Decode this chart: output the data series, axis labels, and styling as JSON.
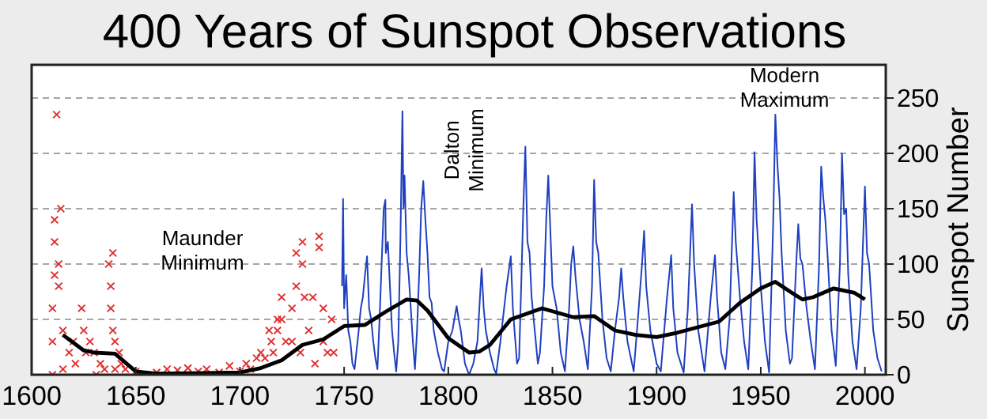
{
  "chart_data": {
    "type": "line",
    "title": "400 Years of Sunspot Observations",
    "ylabel": "Sunspot Number",
    "xlim": [
      1600,
      2010
    ],
    "xticks": [
      1600,
      1650,
      1700,
      1750,
      1800,
      1850,
      1900,
      1950,
      2000
    ],
    "ylim": [
      0,
      280
    ],
    "yticks": [
      0,
      50,
      100,
      150,
      200,
      250
    ],
    "grid": "y",
    "annotations": [
      "Maunder Minimum",
      "Dalton Minimum",
      "Modern Maximum"
    ],
    "series": [
      {
        "type": "scatter",
        "marker": "cross",
        "color": "#e03030",
        "x": [
          1610,
          1610,
          1610,
          1611,
          1611,
          1611,
          1612,
          1613,
          1613,
          1614,
          1615,
          1615,
          1618,
          1620,
          1621,
          1624,
          1625,
          1626,
          1628,
          1630,
          1631,
          1633,
          1635,
          1637,
          1638,
          1638,
          1639,
          1639,
          1640,
          1640,
          1642,
          1643,
          1645,
          1650,
          1655,
          1660,
          1665,
          1670,
          1675,
          1680,
          1684,
          1690,
          1695,
          1700,
          1703,
          1705,
          1708,
          1710,
          1712,
          1714,
          1715,
          1716,
          1718,
          1718,
          1720,
          1720,
          1722,
          1725,
          1725,
          1727,
          1727,
          1729,
          1730,
          1730,
          1731,
          1733,
          1735,
          1736,
          1738,
          1738,
          1740,
          1740,
          1742,
          1744,
          1745
        ],
        "values": [
          0,
          30,
          60,
          90,
          120,
          140,
          235,
          100,
          80,
          150,
          40,
          5,
          20,
          30,
          10,
          60,
          40,
          20,
          30,
          20,
          0,
          10,
          5,
          100,
          80,
          60,
          40,
          110,
          30,
          5,
          20,
          10,
          5,
          3,
          0,
          2,
          5,
          4,
          6,
          3,
          5,
          2,
          8,
          3,
          10,
          5,
          15,
          20,
          15,
          40,
          30,
          20,
          50,
          40,
          50,
          70,
          30,
          60,
          30,
          110,
          80,
          20,
          120,
          100,
          70,
          40,
          70,
          10,
          125,
          115,
          60,
          30,
          20,
          50,
          20
        ]
      },
      {
        "color": "#2040c0",
        "x": [
          1749,
          1749.5,
          1750,
          1751,
          1752,
          1753,
          1754,
          1755,
          1757,
          1758,
          1759,
          1760,
          1761,
          1762,
          1763,
          1764,
          1765,
          1766,
          1767,
          1768,
          1769,
          1769.8,
          1770,
          1771,
          1772,
          1773,
          1774,
          1775,
          1776,
          1777,
          1778,
          1778.5,
          1779,
          1780,
          1781,
          1782,
          1783,
          1784,
          1785,
          1786,
          1787,
          1788,
          1789,
          1790,
          1791,
          1792,
          1793,
          1794,
          1795,
          1797,
          1798,
          1800,
          1802,
          1804,
          1805,
          1806,
          1808,
          1810,
          1812,
          1814,
          1816,
          1817,
          1818,
          1820,
          1822,
          1823,
          1825,
          1828,
          1830,
          1831,
          1833,
          1834,
          1835,
          1836,
          1837,
          1838,
          1839,
          1840,
          1842,
          1843,
          1844,
          1846,
          1847,
          1848,
          1849,
          1850,
          1852,
          1854,
          1856,
          1858,
          1859,
          1860,
          1861,
          1863,
          1865,
          1867,
          1869,
          1870,
          1871,
          1872,
          1874,
          1876,
          1878,
          1880,
          1882,
          1883,
          1884,
          1886,
          1889,
          1891,
          1893,
          1894,
          1895,
          1897,
          1900,
          1902,
          1905,
          1907,
          1908,
          1910,
          1913,
          1915,
          1917,
          1918,
          1920,
          1923,
          1926,
          1928,
          1929,
          1931,
          1933,
          1935,
          1937,
          1938,
          1940,
          1942,
          1944,
          1946,
          1947,
          1948,
          1950,
          1952,
          1954,
          1956,
          1957,
          1958,
          1959,
          1960,
          1962,
          1964,
          1965,
          1967,
          1968,
          1969,
          1970,
          1972,
          1974,
          1976,
          1978,
          1979,
          1980,
          1981,
          1982,
          1984,
          1986,
          1988,
          1989,
          1990,
          1991,
          1992,
          1994,
          1996,
          1998,
          2000,
          2001,
          2002,
          2004,
          2006,
          2008
        ],
        "values": [
          80,
          159,
          60,
          90,
          40,
          30,
          10,
          5,
          40,
          60,
          70,
          90,
          107,
          60,
          50,
          30,
          15,
          5,
          50,
          100,
          150,
          158,
          110,
          120,
          80,
          40,
          20,
          3,
          30,
          120,
          238,
          150,
          180,
          110,
          90,
          60,
          30,
          5,
          40,
          90,
          150,
          175,
          140,
          110,
          70,
          65,
          40,
          30,
          20,
          5,
          3,
          30,
          40,
          62,
          50,
          40,
          10,
          0,
          10,
          30,
          96,
          60,
          40,
          20,
          5,
          1,
          30,
          80,
          107,
          60,
          10,
          15,
          80,
          150,
          206,
          120,
          110,
          70,
          30,
          10,
          20,
          80,
          140,
          180,
          130,
          80,
          60,
          20,
          3,
          60,
          100,
          116,
          90,
          50,
          30,
          5,
          80,
          176,
          120,
          110,
          50,
          15,
          3,
          40,
          70,
          96,
          70,
          30,
          3,
          50,
          100,
          130,
          80,
          40,
          10,
          3,
          70,
          108,
          60,
          20,
          2,
          60,
          154,
          100,
          40,
          3,
          70,
          108,
          70,
          20,
          5,
          50,
          165,
          120,
          70,
          30,
          5,
          100,
          201,
          140,
          80,
          30,
          2,
          140,
          235,
          190,
          160,
          110,
          40,
          10,
          15,
          100,
          136,
          105,
          100,
          60,
          30,
          5,
          100,
          188,
          160,
          140,
          110,
          40,
          8,
          100,
          200,
          145,
          150,
          90,
          30,
          5,
          60,
          170,
          110,
          100,
          40,
          15,
          3
        ]
      },
      {
        "color": "#000000",
        "x": [
          1615,
          1625,
          1630,
          1640,
          1650,
          1660,
          1700,
          1710,
          1720,
          1730,
          1740,
          1750,
          1760,
          1770,
          1780,
          1785,
          1790,
          1800,
          1810,
          1815,
          1820,
          1830,
          1845,
          1860,
          1870,
          1880,
          1890,
          1900,
          1910,
          1920,
          1930,
          1940,
          1950,
          1957,
          1965,
          1970,
          1975,
          1985,
          1995,
          2000
        ],
        "values": [
          36,
          22,
          20,
          19,
          3,
          1,
          2,
          6,
          13,
          27,
          32,
          44,
          45,
          57,
          68,
          67,
          58,
          33,
          20,
          21,
          27,
          50,
          60,
          52,
          53,
          40,
          36,
          34,
          38,
          43,
          48,
          65,
          78,
          84,
          74,
          68,
          70,
          78,
          74,
          68
        ]
      }
    ]
  }
}
